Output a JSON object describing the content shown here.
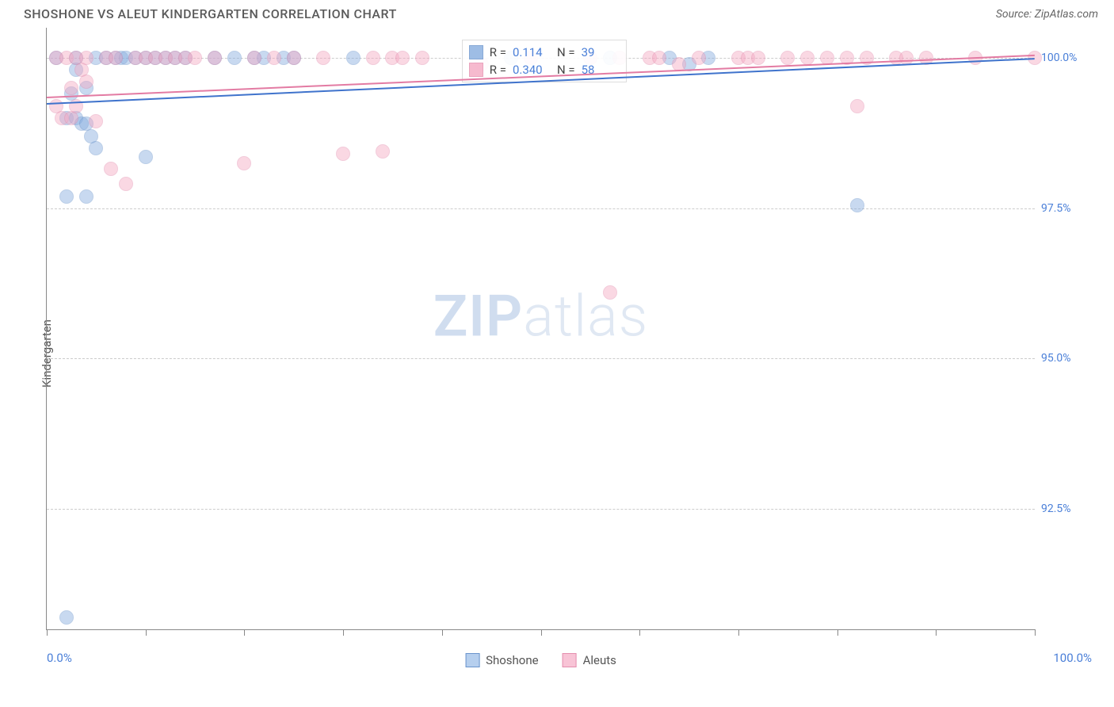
{
  "header": {
    "title": "SHOSHONE VS ALEUT KINDERGARTEN CORRELATION CHART",
    "source": "Source: ZipAtlas.com"
  },
  "chart": {
    "type": "scatter",
    "ylabel": "Kindergarten",
    "xlim": [
      0,
      100
    ],
    "ylim": [
      90.5,
      100.5
    ],
    "x_ticks": [
      0,
      10,
      20,
      30,
      40,
      50,
      60,
      70,
      80,
      90,
      100
    ],
    "y_ticks": [
      92.5,
      95.0,
      97.5,
      100.0
    ],
    "y_tick_labels": [
      "92.5%",
      "95.0%",
      "97.5%",
      "100.0%"
    ],
    "x_limit_labels": {
      "min": "0.0%",
      "max": "100.0%"
    },
    "background_color": "#ffffff",
    "grid_color": "#cccccc",
    "axis_color": "#888888",
    "tick_label_color": "#4a7fd8",
    "point_radius": 9,
    "point_opacity": 0.45,
    "series": [
      {
        "name": "Shoshone",
        "fill": "#87addf",
        "stroke": "#6a94cc",
        "trend": {
          "x1": 0,
          "y1": 99.25,
          "x2": 100,
          "y2": 100.0,
          "color": "#3f73cc",
          "width": 2
        },
        "stats": {
          "R": "0.114",
          "N": "39"
        },
        "points": [
          {
            "x": 1,
            "y": 100.0
          },
          {
            "x": 2,
            "y": 97.7
          },
          {
            "x": 2,
            "y": 99.0
          },
          {
            "x": 2.5,
            "y": 99.4
          },
          {
            "x": 3,
            "y": 100.0
          },
          {
            "x": 3,
            "y": 99.8
          },
          {
            "x": 3,
            "y": 99.0
          },
          {
            "x": 3.5,
            "y": 98.9
          },
          {
            "x": 4,
            "y": 97.7
          },
          {
            "x": 4,
            "y": 99.5
          },
          {
            "x": 4,
            "y": 98.9
          },
          {
            "x": 4.5,
            "y": 98.7
          },
          {
            "x": 5,
            "y": 100.0
          },
          {
            "x": 5,
            "y": 98.5
          },
          {
            "x": 6,
            "y": 100.0
          },
          {
            "x": 7,
            "y": 100.0
          },
          {
            "x": 7.5,
            "y": 100.0
          },
          {
            "x": 8,
            "y": 100.0
          },
          {
            "x": 9,
            "y": 100.0
          },
          {
            "x": 10,
            "y": 98.35
          },
          {
            "x": 10,
            "y": 100.0
          },
          {
            "x": 11,
            "y": 100.0
          },
          {
            "x": 12,
            "y": 100.0
          },
          {
            "x": 13,
            "y": 100.0
          },
          {
            "x": 14,
            "y": 100.0
          },
          {
            "x": 17,
            "y": 100.0
          },
          {
            "x": 19,
            "y": 100.0
          },
          {
            "x": 21,
            "y": 100.0
          },
          {
            "x": 22,
            "y": 100.0
          },
          {
            "x": 24,
            "y": 100.0
          },
          {
            "x": 25,
            "y": 100.0
          },
          {
            "x": 31,
            "y": 100.0
          },
          {
            "x": 47,
            "y": 100.0
          },
          {
            "x": 57,
            "y": 100.0
          },
          {
            "x": 63,
            "y": 100.0
          },
          {
            "x": 65,
            "y": 99.9
          },
          {
            "x": 67,
            "y": 100.0
          },
          {
            "x": 82,
            "y": 97.55
          },
          {
            "x": 2,
            "y": 90.7
          }
        ]
      },
      {
        "name": "Aleuts",
        "fill": "#f5a9c3",
        "stroke": "#e48eae",
        "trend": {
          "x1": 0,
          "y1": 99.35,
          "x2": 100,
          "y2": 100.05,
          "color": "#e37ba3",
          "width": 2
        },
        "stats": {
          "R": "0.340",
          "N": "58"
        },
        "points": [
          {
            "x": 1,
            "y": 99.2
          },
          {
            "x": 1,
            "y": 100.0
          },
          {
            "x": 1.5,
            "y": 99.0
          },
          {
            "x": 2.5,
            "y": 99.0
          },
          {
            "x": 2,
            "y": 100.0
          },
          {
            "x": 2.5,
            "y": 99.5
          },
          {
            "x": 3,
            "y": 99.2
          },
          {
            "x": 3,
            "y": 100.0
          },
          {
            "x": 3.5,
            "y": 99.8
          },
          {
            "x": 4,
            "y": 100.0
          },
          {
            "x": 4,
            "y": 99.6
          },
          {
            "x": 5,
            "y": 98.95
          },
          {
            "x": 6,
            "y": 100.0
          },
          {
            "x": 6.5,
            "y": 98.15
          },
          {
            "x": 7,
            "y": 100.0
          },
          {
            "x": 8,
            "y": 97.9
          },
          {
            "x": 9,
            "y": 100.0
          },
          {
            "x": 10,
            "y": 100.0
          },
          {
            "x": 11,
            "y": 100.0
          },
          {
            "x": 12,
            "y": 100.0
          },
          {
            "x": 13,
            "y": 100.0
          },
          {
            "x": 14,
            "y": 100.0
          },
          {
            "x": 15,
            "y": 100.0
          },
          {
            "x": 17,
            "y": 100.0
          },
          {
            "x": 20,
            "y": 98.25
          },
          {
            "x": 21,
            "y": 100.0
          },
          {
            "x": 23,
            "y": 100.0
          },
          {
            "x": 25,
            "y": 100.0
          },
          {
            "x": 28,
            "y": 100.0
          },
          {
            "x": 30,
            "y": 98.4
          },
          {
            "x": 33,
            "y": 100.0
          },
          {
            "x": 34,
            "y": 98.45
          },
          {
            "x": 35,
            "y": 100.0
          },
          {
            "x": 36,
            "y": 100.0
          },
          {
            "x": 38,
            "y": 100.0
          },
          {
            "x": 44,
            "y": 99.9
          },
          {
            "x": 49,
            "y": 100.0
          },
          {
            "x": 55,
            "y": 100.0
          },
          {
            "x": 57,
            "y": 96.1
          },
          {
            "x": 58,
            "y": 100.0
          },
          {
            "x": 61,
            "y": 100.0
          },
          {
            "x": 62,
            "y": 100.0
          },
          {
            "x": 64,
            "y": 99.9
          },
          {
            "x": 66,
            "y": 100.0
          },
          {
            "x": 70,
            "y": 100.0
          },
          {
            "x": 71,
            "y": 100.0
          },
          {
            "x": 72,
            "y": 100.0
          },
          {
            "x": 75,
            "y": 100.0
          },
          {
            "x": 77,
            "y": 100.0
          },
          {
            "x": 79,
            "y": 100.0
          },
          {
            "x": 81,
            "y": 100.0
          },
          {
            "x": 82,
            "y": 99.2
          },
          {
            "x": 83,
            "y": 100.0
          },
          {
            "x": 86,
            "y": 100.0
          },
          {
            "x": 87,
            "y": 100.0
          },
          {
            "x": 89,
            "y": 100.0
          },
          {
            "x": 94,
            "y": 100.0
          },
          {
            "x": 100,
            "y": 100.0
          }
        ]
      }
    ],
    "watermark": {
      "text_bold": "ZIP",
      "text_light": "atlas"
    },
    "stats_box": {
      "left_pct": 42,
      "top_pct": 2
    }
  },
  "legend": {
    "items": [
      {
        "label": "Shoshone",
        "fill": "#b6cfee",
        "stroke": "#6a94cc"
      },
      {
        "label": "Aleuts",
        "fill": "#f8c4d6",
        "stroke": "#e48eae"
      }
    ]
  }
}
